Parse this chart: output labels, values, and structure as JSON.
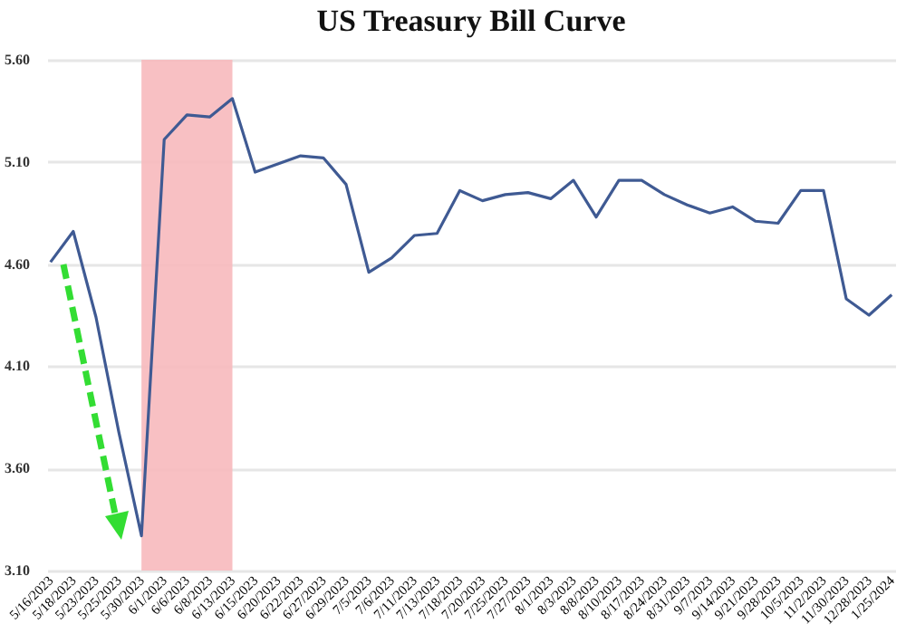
{
  "chart_data": {
    "type": "line",
    "title": "US Treasury Bill Curve",
    "categories": [
      "5/16/2023",
      "5/18/2023",
      "5/23/2023",
      "5/25/2023",
      "5/30/2023",
      "6/1/2023",
      "6/6/2023",
      "6/8/2023",
      "6/13/2023",
      "6/15/2023",
      "6/20/2023",
      "6/22/2023",
      "6/27/2023",
      "6/29/2023",
      "7/5/2023",
      "7/6/2023",
      "7/11/2023",
      "7/13/2023",
      "7/18/2023",
      "7/20/2023",
      "7/25/2023",
      "7/27/2023",
      "8/1/2023",
      "8/3/2023",
      "8/8/2023",
      "8/10/2023",
      "8/17/2023",
      "8/24/2023",
      "8/31/2023",
      "9/7/2023",
      "9/14/2023",
      "9/21/2023",
      "9/28/2023",
      "10/5/2023",
      "11/2/2023",
      "11/30/2023",
      "12/28/2023",
      "1/25/2024"
    ],
    "series": [
      {
        "color": "#3f5a93",
        "values": [
          4.61,
          4.76,
          4.34,
          3.78,
          3.27,
          5.21,
          5.33,
          5.32,
          5.41,
          5.05,
          5.09,
          5.13,
          5.12,
          4.99,
          4.56,
          4.63,
          4.74,
          4.75,
          4.96,
          4.91,
          4.94,
          4.95,
          4.92,
          5.01,
          4.83,
          5.01,
          5.01,
          4.94,
          4.89,
          4.85,
          4.88,
          4.81,
          4.8,
          4.96,
          4.96,
          4.43,
          4.35,
          4.45
        ]
      }
    ],
    "ylim": [
      3.1,
      5.6
    ],
    "yticks": [
      {
        "value": 3.1,
        "label": "3.10"
      },
      {
        "value": 3.6,
        "label": "3.60"
      },
      {
        "value": 4.1,
        "label": "4.10"
      },
      {
        "value": 4.6,
        "label": "4.60"
      },
      {
        "value": 5.1,
        "label": "5.10"
      },
      {
        "value": 5.6,
        "label": "5.60"
      }
    ],
    "grid": "y",
    "bands": [
      {
        "axis": "x",
        "from": "5/30/2023",
        "to": "6/13/2023",
        "color": "#f7b9bc"
      }
    ]
  }
}
